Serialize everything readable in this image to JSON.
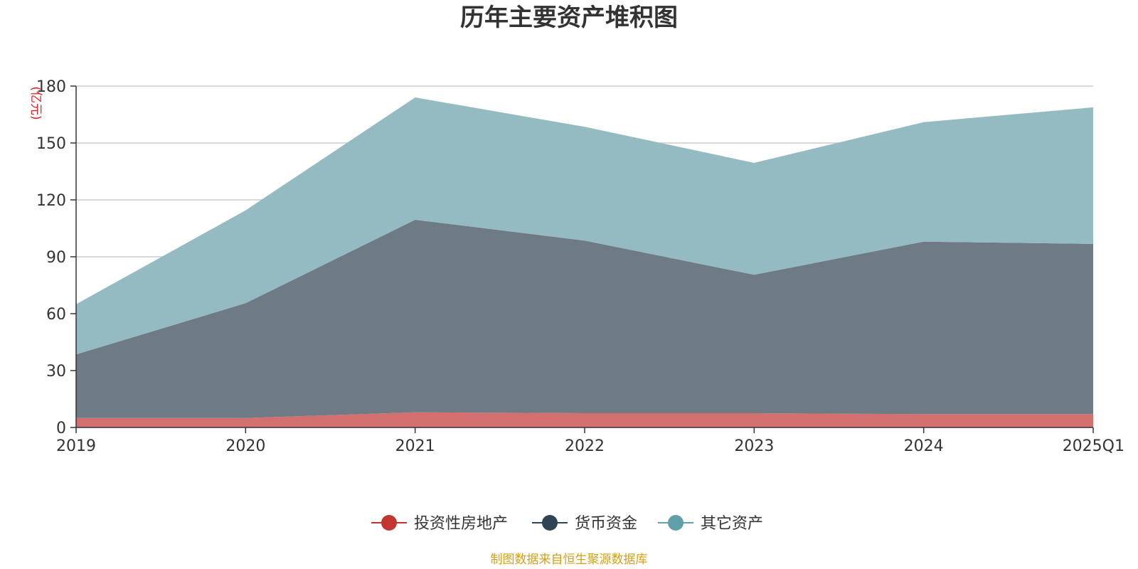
{
  "chart_data": {
    "type": "area",
    "stacked": true,
    "title": "历年主要资产堆积图",
    "y_unit": "(亿元)",
    "categories": [
      "2019",
      "2020",
      "2021",
      "2022",
      "2023",
      "2024",
      "2025Q1"
    ],
    "ylim": [
      0,
      180
    ],
    "yticks": [
      "0",
      "30",
      "60",
      "90",
      "120",
      "150",
      "180"
    ],
    "grid": true,
    "legend_position": "bottom-center",
    "series": [
      {
        "name": "投资性房地产",
        "color": "#c23531",
        "fill": "#d46f6f",
        "values": [
          5,
          5,
          8,
          7.5,
          7.5,
          7,
          7
        ]
      },
      {
        "name": "货币资金",
        "color": "#2f4554",
        "fill": "#6e7b85",
        "values": [
          33.5,
          60.5,
          101.5,
          91,
          73,
          91,
          89.8
        ]
      },
      {
        "name": "其它资产",
        "color": "#61a0a8",
        "fill": "#93bbc1",
        "values": [
          26.5,
          49,
          64.5,
          60,
          59,
          63,
          72
        ]
      }
    ],
    "source": "制图数据来自恒生聚源数据库"
  }
}
